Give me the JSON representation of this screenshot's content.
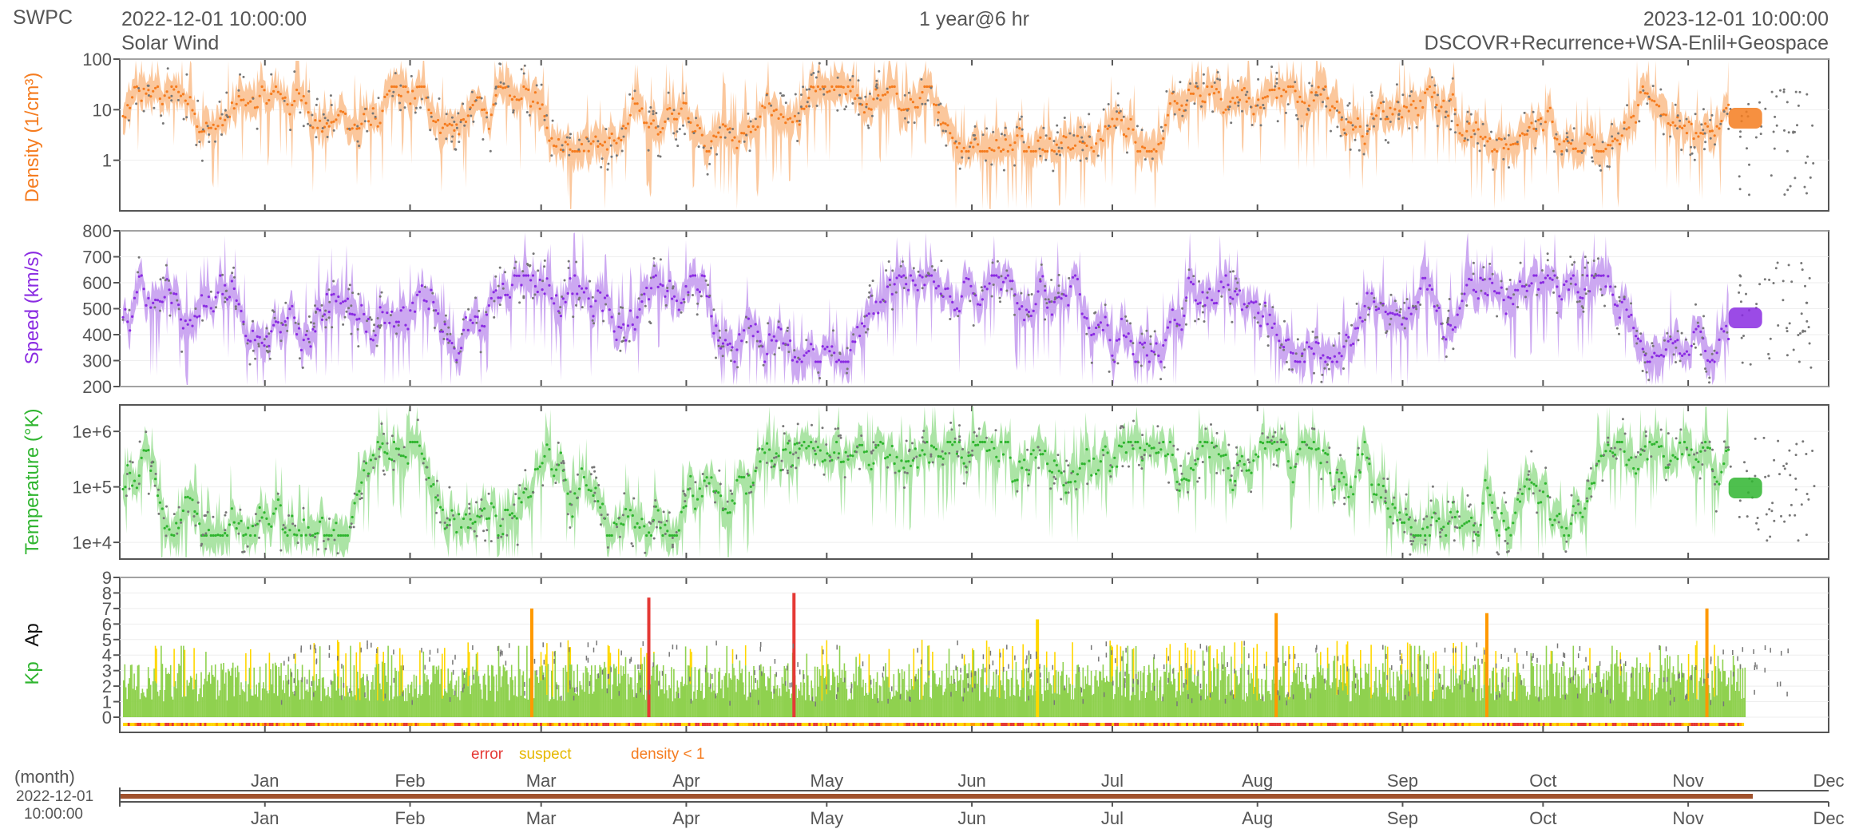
{
  "header": {
    "org": "SWPC",
    "start_time": "2022-12-01 10:00:00",
    "subtitle": "Solar Wind",
    "span": "1 year@6 hr",
    "end_time": "2023-12-01 10:00:00",
    "sources": "DSCOVR+Recurrence+WSA-Enlil+Geospace"
  },
  "colors": {
    "density": "#f57c1f",
    "density_band": "#fbc497",
    "speed": "#8a2be2",
    "speed_band": "#c9a3f0",
    "temperature": "#2fb52f",
    "temperature_band": "#a7e3a0",
    "kp_bar": "#8fd14f",
    "kp_high": "#ffd700",
    "kp_storm": "#ff9900",
    "kp_severe": "#e53935",
    "observed": "#777777",
    "frame": "#555555"
  },
  "months": [
    "Jan",
    "Feb",
    "Mar",
    "Apr",
    "May",
    "Jun",
    "Jul",
    "Aug",
    "Sep",
    "Oct",
    "Nov",
    "Dec"
  ],
  "chart_data": [
    {
      "name": "density",
      "type": "line",
      "ylabel": "Density (1/cm³)",
      "scale": "log",
      "ylim": [
        0.1,
        100
      ],
      "yticks": [
        "100",
        "10",
        "1"
      ],
      "typical_range": [
        2,
        20
      ],
      "x": "2022-12-01 to 2023-12-01 at 6 hr"
    },
    {
      "name": "speed",
      "type": "line",
      "ylabel": "Speed (km/s)",
      "scale": "linear",
      "ylim": [
        200,
        800
      ],
      "yticks": [
        "800",
        "700",
        "600",
        "500",
        "400",
        "300",
        "200"
      ],
      "typical_range": [
        300,
        650
      ]
    },
    {
      "name": "temperature",
      "type": "line",
      "ylabel": "Temperature (°K)",
      "scale": "log",
      "ylim": [
        5000,
        3000000
      ],
      "yticks": [
        "1e+6",
        "1e+5",
        "1e+4"
      ],
      "typical_range": [
        10000,
        1000000
      ]
    },
    {
      "name": "kp",
      "type": "bar",
      "ylabel_kp": "Kp",
      "ylabel_ap": "Ap",
      "ylim": [
        0,
        9
      ],
      "yticks": [
        "9",
        "8",
        "7",
        "6",
        "5",
        "4",
        "3",
        "2",
        "1",
        "0"
      ],
      "peaks": [
        {
          "date": "2023-02-27",
          "kp": 7
        },
        {
          "date": "2023-03-24",
          "kp": 7.7
        },
        {
          "date": "2023-04-24",
          "kp": 8
        },
        {
          "date": "2023-06-15",
          "kp": 6.3
        },
        {
          "date": "2023-08-05",
          "kp": 6.7
        },
        {
          "date": "2023-09-19",
          "kp": 6.7
        },
        {
          "date": "2023-11-05",
          "kp": 7
        }
      ]
    }
  ],
  "flags": {
    "error": "error",
    "suspect": "suspect",
    "density_lt_1": "density < 1"
  },
  "timeline": {
    "unit": "(month)",
    "date": "2022-12-01",
    "time": "10:00:00"
  }
}
